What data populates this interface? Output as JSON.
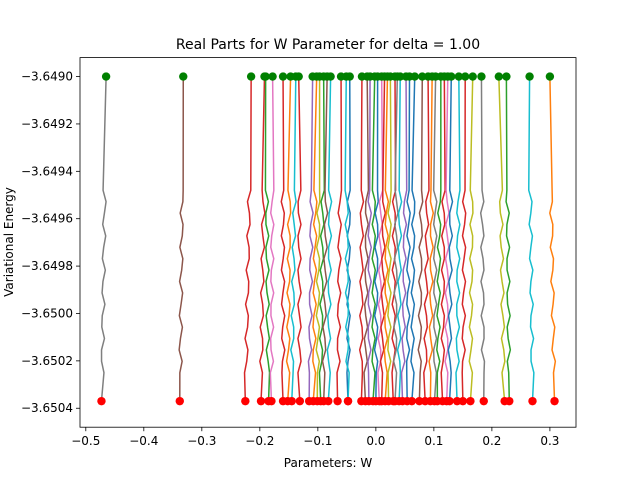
{
  "chart_data": {
    "type": "line",
    "title": "Real Parts for W Parameter for delta = 1.00",
    "xlabel": "Parameters: W",
    "ylabel": "Variational Energy",
    "xlim": [
      -0.51,
      0.345
    ],
    "ylim": [
      -3.65048,
      -3.64892
    ],
    "xticks": [
      -0.5,
      -0.4,
      -0.3,
      -0.2,
      -0.1,
      0.0,
      0.1,
      0.2,
      0.3
    ],
    "xtick_labels": [
      "−0.5",
      "−0.4",
      "−0.3",
      "−0.2",
      "−0.1",
      "0.0",
      "0.1",
      "0.2",
      "0.3"
    ],
    "yticks": [
      -3.6504,
      -3.6502,
      -3.65,
      -3.6498,
      -3.6496,
      -3.6494,
      -3.6492,
      -3.649
    ],
    "ytick_labels": [
      "−3.6504",
      "−3.6502",
      "−3.6500",
      "−3.6498",
      "−3.6496",
      "−3.6494",
      "−3.6492",
      "−3.6490"
    ],
    "grid": false,
    "start_marker_color": "#ff0000",
    "end_marker_color": "#008000",
    "y_start": -3.65037,
    "y_end": -3.649,
    "band_top": -3.64948,
    "band_bottom": -3.65025,
    "series": [
      {
        "color": "#7f7f7f",
        "x_start": -0.473,
        "x_end": -0.465
      },
      {
        "color": "#8c564b",
        "x_start": -0.338,
        "x_end": -0.332
      },
      {
        "color": "#d62728",
        "x_start": -0.225,
        "x_end": -0.215
      },
      {
        "color": "#d62728",
        "x_start": -0.198,
        "x_end": -0.192
      },
      {
        "color": "#2ca02c",
        "x_start": -0.185,
        "x_end": -0.19
      },
      {
        "color": "#e377c2",
        "x_start": -0.18,
        "x_end": -0.178
      },
      {
        "color": "#d62728",
        "x_start": -0.16,
        "x_end": -0.16
      },
      {
        "color": "#ff7f0e",
        "x_start": -0.152,
        "x_end": -0.147
      },
      {
        "color": "#17becf",
        "x_start": -0.145,
        "x_end": -0.138
      },
      {
        "color": "#d62728",
        "x_start": -0.131,
        "x_end": -0.133
      },
      {
        "color": "#9467bd",
        "x_start": -0.115,
        "x_end": -0.109
      },
      {
        "color": "#ff7f0e",
        "x_start": -0.108,
        "x_end": -0.102
      },
      {
        "color": "#bcbd22",
        "x_start": -0.101,
        "x_end": -0.097
      },
      {
        "color": "#2ca02c",
        "x_start": -0.095,
        "x_end": -0.09
      },
      {
        "color": "#8c564b",
        "x_start": -0.09,
        "x_end": -0.084
      },
      {
        "color": "#17becf",
        "x_start": -0.082,
        "x_end": -0.078
      },
      {
        "color": "#d62728",
        "x_start": -0.066,
        "x_end": -0.06
      },
      {
        "color": "#1f77b4",
        "x_start": -0.048,
        "x_end": -0.045
      },
      {
        "color": "#17becf",
        "x_start": -0.048,
        "x_end": -0.051
      },
      {
        "color": "#d62728",
        "x_start": -0.025,
        "x_end": -0.024
      },
      {
        "color": "#8c564b",
        "x_start": -0.018,
        "x_end": -0.015
      },
      {
        "color": "#9467bd",
        "x_start": -0.012,
        "x_end": -0.01
      },
      {
        "color": "#2ca02c",
        "x_start": -0.005,
        "x_end": -0.002
      },
      {
        "color": "#1f77b4",
        "x_start": 0.0,
        "x_end": 0.003
      },
      {
        "color": "#e377c2",
        "x_start": 0.006,
        "x_end": 0.01
      },
      {
        "color": "#d62728",
        "x_start": 0.01,
        "x_end": 0.015
      },
      {
        "color": "#ff7f0e",
        "x_start": 0.016,
        "x_end": 0.02
      },
      {
        "color": "#bcbd22",
        "x_start": 0.022,
        "x_end": 0.025
      },
      {
        "color": "#d62728",
        "x_start": 0.03,
        "x_end": 0.033
      },
      {
        "color": "#7f7f7f",
        "x_start": 0.033,
        "x_end": 0.037
      },
      {
        "color": "#17becf",
        "x_start": 0.04,
        "x_end": 0.042
      },
      {
        "color": "#9467bd",
        "x_start": 0.046,
        "x_end": 0.052
      },
      {
        "color": "#1f77b4",
        "x_start": 0.054,
        "x_end": 0.058
      },
      {
        "color": "#1f77b4",
        "x_start": 0.062,
        "x_end": 0.067
      },
      {
        "color": "#8c564b",
        "x_start": 0.075,
        "x_end": 0.08
      },
      {
        "color": "#d62728",
        "x_start": 0.085,
        "x_end": 0.09
      },
      {
        "color": "#ff7f0e",
        "x_start": 0.094,
        "x_end": 0.097
      },
      {
        "color": "#7f7f7f",
        "x_start": 0.101,
        "x_end": 0.103
      },
      {
        "color": "#2ca02c",
        "x_start": 0.106,
        "x_end": 0.112
      },
      {
        "color": "#d62728",
        "x_start": 0.115,
        "x_end": 0.118
      },
      {
        "color": "#e377c2",
        "x_start": 0.122,
        "x_end": 0.124
      },
      {
        "color": "#1f77b4",
        "x_start": 0.127,
        "x_end": 0.13
      },
      {
        "color": "#17becf",
        "x_start": 0.14,
        "x_end": 0.143
      },
      {
        "color": "#d62728",
        "x_start": 0.15,
        "x_end": 0.154
      },
      {
        "color": "#bcbd22",
        "x_start": 0.163,
        "x_end": 0.167
      },
      {
        "color": "#7f7f7f",
        "x_start": 0.186,
        "x_end": 0.182
      },
      {
        "color": "#bcbd22",
        "x_start": 0.222,
        "x_end": 0.212
      },
      {
        "color": "#2ca02c",
        "x_start": 0.23,
        "x_end": 0.225
      },
      {
        "color": "#17becf",
        "x_start": 0.27,
        "x_end": 0.265
      },
      {
        "color": "#ff7f0e",
        "x_start": 0.308,
        "x_end": 0.3
      }
    ]
  }
}
